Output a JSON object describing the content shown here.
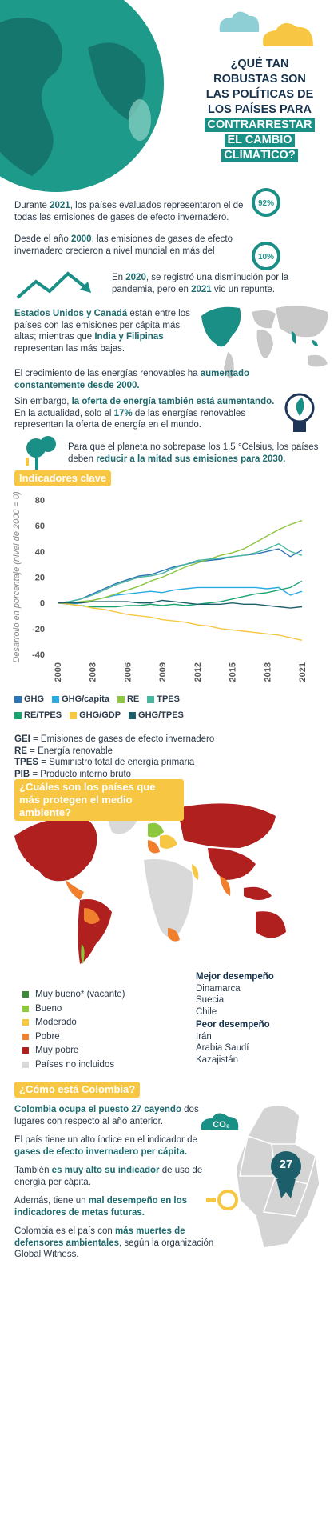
{
  "header": {
    "title_lines": [
      {
        "text": "¿QUÉ TAN"
      },
      {
        "text": "ROBUSTAS SON"
      },
      {
        "text": "LAS POLÍTICAS DE"
      },
      {
        "text": "LOS PAÍSES PARA"
      },
      {
        "text": "CONTRARRESTAR",
        "highlight": true
      },
      {
        "text": "EL CAMBIO",
        "highlight": true
      },
      {
        "text": "CLIMÁTICO?",
        "highlight": true
      }
    ]
  },
  "facts": [
    {
      "runs": [
        "Durante ",
        {
          "text": "2021",
          "bold": true
        },
        ", los países evaluados representaron el de todas las emisiones de gases de efecto invernadero."
      ],
      "badge": "92%"
    },
    {
      "runs": [
        "Desde el año ",
        {
          "text": "2000",
          "bold": true
        },
        ", las emisiones de gases de efecto invernadero crecieron a nivel mundial en más del"
      ],
      "badge": "10%"
    },
    {
      "runs": [
        "En ",
        {
          "text": "2020",
          "bold": true
        },
        ", se registró una disminución por la pandemia, pero en ",
        {
          "text": "2021",
          "bold": true
        },
        " vio un repunte."
      ]
    },
    {
      "runs": [
        {
          "text": "Estados Unidos y Canadá",
          "bold": true
        },
        " están entre los países con las emisiones per cápita más altas; mientras que ",
        {
          "text": "India y Filipinas",
          "bold": true
        },
        " representan las más bajas."
      ]
    },
    {
      "runs": [
        "El crecimiento de las energías renovables ha ",
        {
          "text": "aumentado constantemente desde 2000.",
          "bold": true
        }
      ]
    },
    {
      "runs": [
        "Sin embargo, ",
        {
          "text": "la oferta de energía también está aumentando.",
          "bold": true
        },
        " En la actualidad, solo el ",
        {
          "text": "17%",
          "bold": true
        },
        " de las energías renovables representan la oferta de energía en el mundo."
      ]
    },
    {
      "runs": [
        "Para que el planeta no sobrepase los 1,5 °Celsius, los países deben ",
        {
          "text": "reducir a la mitad sus emisiones para 2030.",
          "bold": true
        }
      ]
    }
  ],
  "chart_data": {
    "type": "line",
    "title": "Indicadores clave",
    "y_label": "Desarrollo en porcentaje (nivel de 2000 = 0)",
    "x": [
      2000,
      2001,
      2002,
      2003,
      2004,
      2005,
      2006,
      2007,
      2008,
      2009,
      2010,
      2011,
      2012,
      2013,
      2014,
      2015,
      2016,
      2017,
      2018,
      2019,
      2020,
      2021
    ],
    "xlim": [
      2000,
      2021
    ],
    "xticks": [
      2000,
      2003,
      2006,
      2009,
      2012,
      2015,
      2018,
      2021
    ],
    "ylim": [
      -40,
      80
    ],
    "yticks": [
      -40,
      -20,
      0,
      20,
      40,
      60,
      80
    ],
    "series": [
      {
        "name": "GHG",
        "color": "#2e75b6",
        "values": [
          0,
          1,
          3,
          7,
          11,
          15,
          18,
          21,
          22,
          25,
          28,
          30,
          32,
          33,
          34,
          36,
          37,
          38,
          40,
          42,
          36,
          41
        ]
      },
      {
        "name": "GHG/capita",
        "color": "#29abe2",
        "values": [
          0,
          -1,
          0,
          2,
          4,
          6,
          7,
          8,
          9,
          8,
          10,
          11,
          12,
          12,
          12,
          12,
          12,
          12,
          11,
          12,
          6,
          9
        ]
      },
      {
        "name": "RE",
        "color": "#8dc63f",
        "values": [
          0,
          0,
          1,
          2,
          4,
          7,
          10,
          13,
          17,
          20,
          24,
          28,
          31,
          34,
          37,
          39,
          42,
          47,
          52,
          57,
          61,
          64
        ]
      },
      {
        "name": "TPES",
        "color": "#4ab8a0",
        "values": [
          0,
          1,
          3,
          6,
          10,
          14,
          17,
          20,
          21,
          23,
          27,
          30,
          33,
          34,
          35,
          36,
          37,
          39,
          42,
          46,
          40,
          37
        ]
      },
      {
        "name": "RE/TPES",
        "color": "#1aa36f",
        "values": [
          0,
          -1,
          -2,
          -3,
          -3,
          -3,
          -2,
          -2,
          -1,
          -2,
          -1,
          -2,
          -1,
          0,
          1,
          3,
          5,
          7,
          8,
          10,
          12,
          17
        ]
      },
      {
        "name": "GHG/GDP",
        "color": "#f7c744",
        "values": [
          0,
          -1,
          -2,
          -4,
          -5,
          -7,
          -9,
          -10,
          -11,
          -13,
          -14,
          -15,
          -17,
          -18,
          -20,
          -21,
          -22,
          -23,
          -24,
          -25,
          -27,
          -29
        ]
      },
      {
        "name": "GHG/TPES",
        "color": "#1d5e6b",
        "values": [
          0,
          0,
          0,
          1,
          1,
          1,
          1,
          0,
          0,
          2,
          1,
          0,
          -1,
          -1,
          -1,
          0,
          -1,
          -1,
          -2,
          -3,
          -4,
          -3
        ]
      }
    ]
  },
  "glossary": [
    {
      "term": "GEI",
      "definition": " = Emisiones de gases de efecto invernadero"
    },
    {
      "term": "RE",
      "definition": " = Energía renovable"
    },
    {
      "term": "TPES",
      "definition": " = Suministro total de energía primaria"
    },
    {
      "term": "PIB",
      "definition": " = Producto interno bruto"
    }
  ],
  "ranking": {
    "title": "¿Cuáles son los países que más protegen el medio ambiente?",
    "legend": [
      {
        "label": "Muy bueno* (vacante)",
        "color": "#3d8b37"
      },
      {
        "label": "Bueno",
        "color": "#8dc63f"
      },
      {
        "label": "Moderado",
        "color": "#f7c744"
      },
      {
        "label": "Pobre",
        "color": "#f07f2e"
      },
      {
        "label": "Muy pobre",
        "color": "#b0201f"
      },
      {
        "label": "Países no incluidos",
        "color": "#d9d9d9"
      }
    ],
    "best": {
      "title": "Mejor desempeño",
      "countries": [
        "Dinamarca",
        "Suecia",
        "Chile"
      ]
    },
    "worst": {
      "title": "Peor desempeño",
      "countries": [
        "Irán",
        "Arabia Saudí",
        "Kazajistán"
      ]
    }
  },
  "colombia": {
    "title": "¿Cómo está Colombia?",
    "badge": "27",
    "icon_label": "CO₂",
    "paragraphs": [
      {
        "runs": [
          {
            "text": "Colombia ocupa el puesto 27 cayendo",
            "bold": true
          },
          " dos lugares con respecto al año anterior."
        ]
      },
      {
        "runs": [
          "El país tiene un alto índice en el indicador de ",
          {
            "text": "gases de efecto invernadero per cápita.",
            "bold": true
          }
        ]
      },
      {
        "runs": [
          "También ",
          {
            "text": "es muy alto su indicador",
            "bold": true
          },
          " de uso de energía per cápita."
        ]
      },
      {
        "runs": [
          "Además, tiene un ",
          {
            "text": "mal desempeño en los indicadores de metas futuras.",
            "bold": true
          }
        ]
      },
      {
        "runs": [
          "Colombia es el país con ",
          {
            "text": "más muertes de defensores ambientales",
            "bold": true
          },
          ", según la organización Global Witness."
        ]
      }
    ]
  }
}
